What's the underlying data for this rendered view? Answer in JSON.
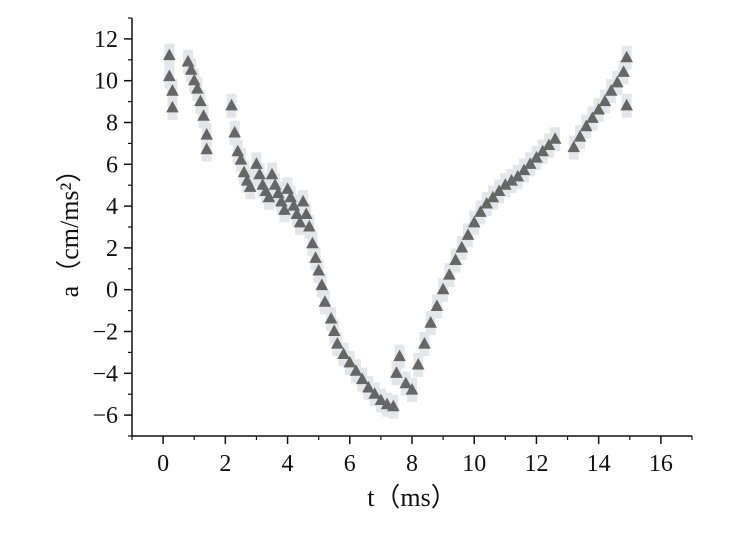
{
  "chart_data": {
    "type": "scatter",
    "xlabel": "t（ms）",
    "ylabel": "a（cm/ms²）",
    "xlim": [
      -1,
      17
    ],
    "ylim": [
      -7,
      13
    ],
    "xticks": [
      0,
      2,
      4,
      6,
      8,
      10,
      12,
      14,
      16
    ],
    "xtick_labels": [
      "0",
      "2",
      "4",
      "6",
      "8",
      "10",
      "12",
      "14",
      "16"
    ],
    "yticks": [
      -6,
      -4,
      -2,
      0,
      2,
      4,
      6,
      8,
      10,
      12
    ],
    "ytick_labels": [
      "−6",
      "−4",
      "−2",
      "0",
      "2",
      "4",
      "6",
      "8",
      "10",
      "12"
    ],
    "grid": false,
    "legend": "none",
    "marker": "triangle-up",
    "colors": {
      "marker": "#666666",
      "band": "#e4e6ea",
      "axis": "#111111"
    },
    "series": [
      {
        "x": [
          0.2,
          0.2,
          0.3,
          0.3,
          0.8,
          0.9,
          1.0,
          1.1,
          1.2,
          1.3,
          1.4,
          1.4,
          2.2,
          2.3,
          2.4,
          2.5,
          2.6,
          2.7,
          2.8,
          3.0,
          3.1,
          3.2,
          3.3,
          3.4,
          3.5,
          3.6,
          3.7,
          3.8,
          3.9,
          4.0,
          4.1,
          4.2,
          4.3,
          4.4,
          4.5,
          4.6,
          4.7,
          4.8,
          4.9,
          5.0,
          5.1,
          5.2,
          5.4,
          5.5,
          5.6,
          5.8,
          6.0,
          6.2,
          6.4,
          6.6,
          6.8,
          7.0,
          7.2,
          7.4,
          7.5,
          7.6,
          7.8,
          8.0,
          8.2,
          8.4,
          8.6,
          8.8,
          9.0,
          9.2,
          9.4,
          9.6,
          9.8,
          10.0,
          10.2,
          10.4,
          10.6,
          10.8,
          11.0,
          11.2,
          11.4,
          11.6,
          11.8,
          12.0,
          12.2,
          12.4,
          12.6,
          13.2,
          13.4,
          13.6,
          13.8,
          14.0,
          14.2,
          14.4,
          14.6,
          14.8,
          14.9,
          14.9
        ],
        "y": [
          11.2,
          10.2,
          9.5,
          8.7,
          10.9,
          10.5,
          10.0,
          9.6,
          9.0,
          8.3,
          7.4,
          6.7,
          8.8,
          7.5,
          6.6,
          6.2,
          5.6,
          5.2,
          4.9,
          6.0,
          5.5,
          5.0,
          4.7,
          4.4,
          5.5,
          5.0,
          4.6,
          4.2,
          3.8,
          4.8,
          4.4,
          4.0,
          3.6,
          3.2,
          4.2,
          3.6,
          3.0,
          2.2,
          1.5,
          0.9,
          0.2,
          -0.6,
          -1.4,
          -2.0,
          -2.6,
          -3.1,
          -3.5,
          -3.9,
          -4.3,
          -4.7,
          -5.0,
          -5.3,
          -5.5,
          -5.6,
          -4.0,
          -3.2,
          -4.5,
          -4.8,
          -3.6,
          -2.6,
          -1.6,
          -0.8,
          0.0,
          0.7,
          1.4,
          2.0,
          2.6,
          3.2,
          3.7,
          4.1,
          4.4,
          4.7,
          5.0,
          5.2,
          5.4,
          5.7,
          6.0,
          6.3,
          6.6,
          6.9,
          7.2,
          6.8,
          7.3,
          7.8,
          8.2,
          8.6,
          9.0,
          9.5,
          9.9,
          10.4,
          11.1,
          8.8
        ]
      }
    ]
  }
}
